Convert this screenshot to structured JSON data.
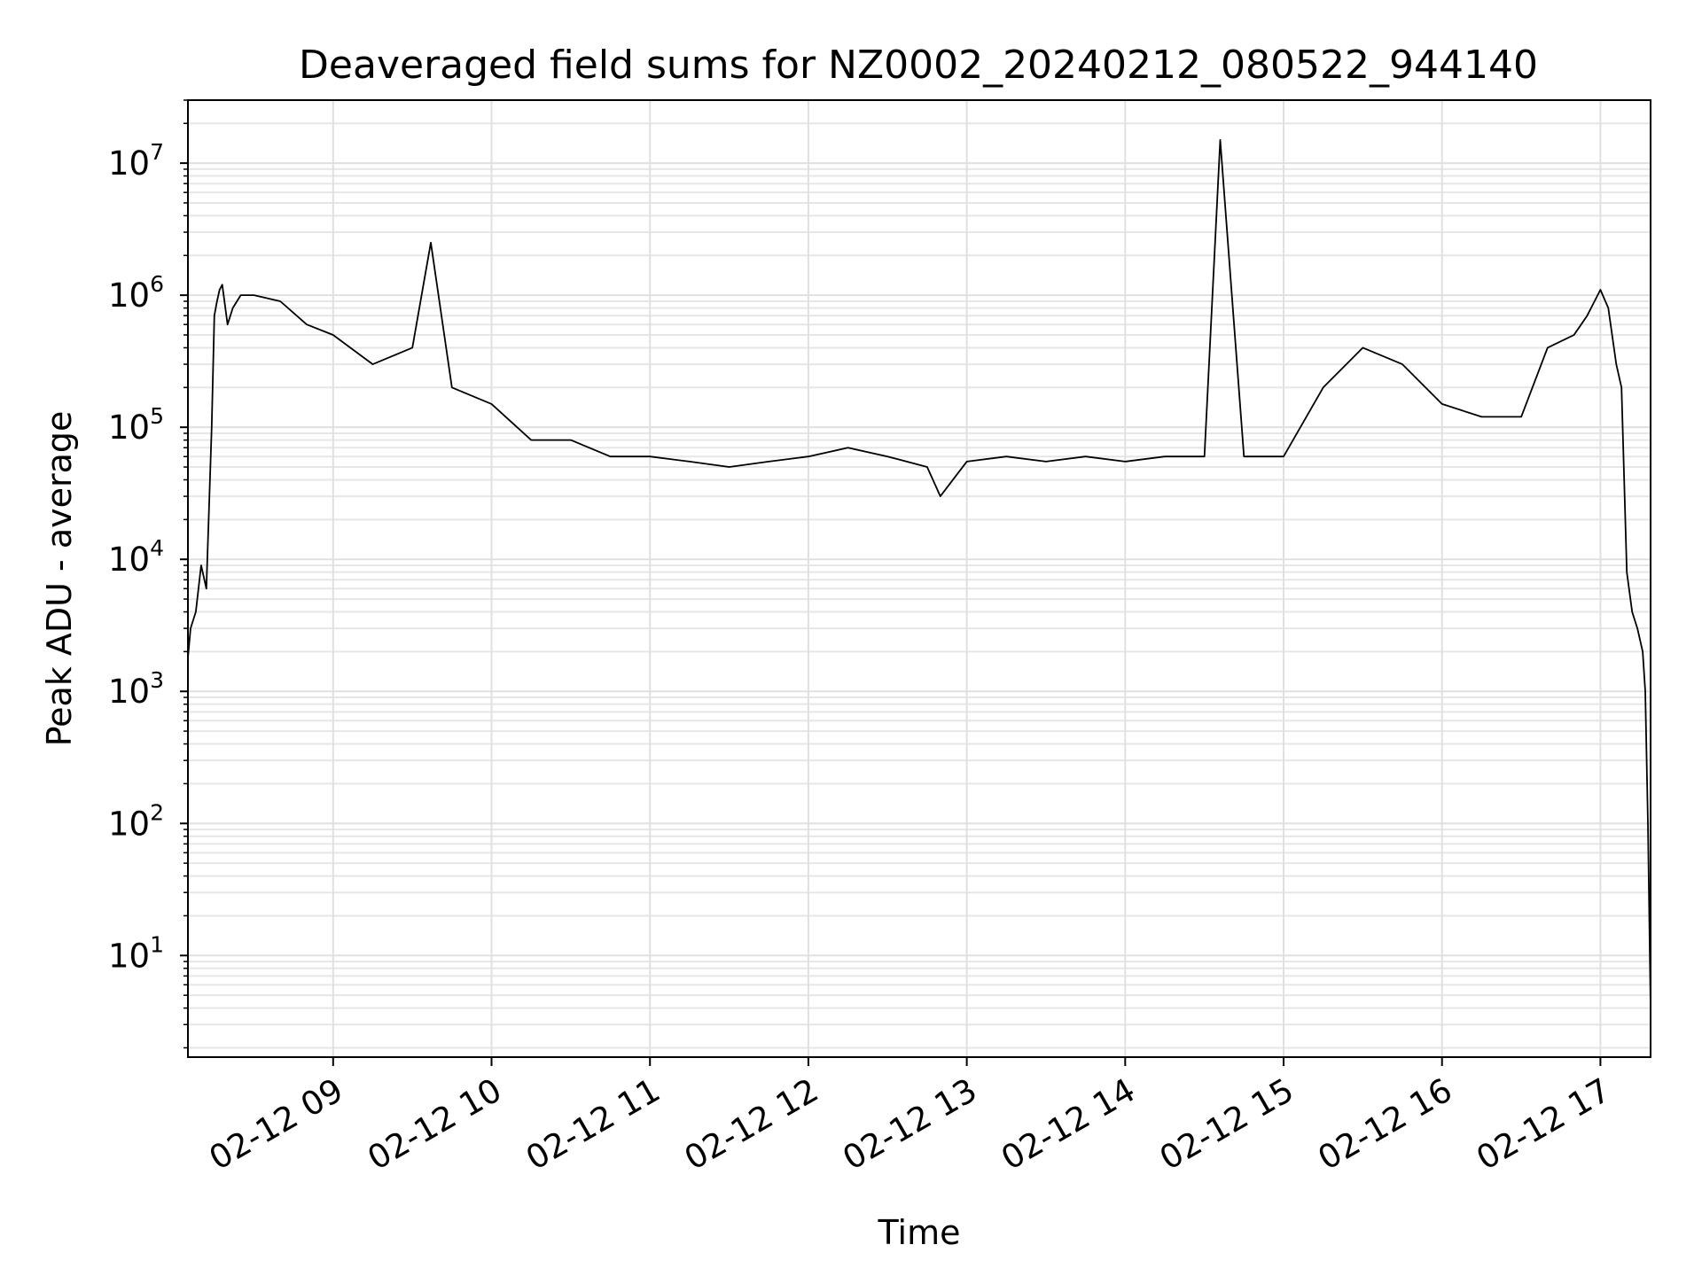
{
  "chart_data": {
    "type": "line",
    "title": "Deaveraged field sums for NZ0002_20240212_080522_944140",
    "xlabel": "Time",
    "ylabel": "Peak ADU - average",
    "yscale": "log",
    "ylim": [
      1.7,
      30000000
    ],
    "xlim": [
      "2024-02-12 08:05",
      "2024-02-12 17:19"
    ],
    "grid": true,
    "x_ticks": [
      "2024-02-12 09:00",
      "2024-02-12 10:00",
      "2024-02-12 11:00",
      "2024-02-12 12:00",
      "2024-02-12 13:00",
      "2024-02-12 14:00",
      "2024-02-12 15:00",
      "2024-02-12 16:00",
      "2024-02-12 17:00"
    ],
    "x_tick_labels": [
      "02-12 09",
      "02-12 10",
      "02-12 11",
      "02-12 12",
      "02-12 13",
      "02-12 14",
      "02-12 15",
      "02-12 16",
      "02-12 17"
    ],
    "y_tick_labels": [
      {
        "base": "10",
        "exp": "1",
        "value": 10
      },
      {
        "base": "10",
        "exp": "2",
        "value": 100
      },
      {
        "base": "10",
        "exp": "3",
        "value": 1000
      },
      {
        "base": "10",
        "exp": "4",
        "value": 10000
      },
      {
        "base": "10",
        "exp": "5",
        "value": 100000
      },
      {
        "base": "10",
        "exp": "6",
        "value": 1000000
      },
      {
        "base": "10",
        "exp": "7",
        "value": 10000000
      }
    ],
    "series": [
      {
        "color": "#000000",
        "x": [
          "2024-02-12 08:05",
          "2024-02-12 08:06",
          "2024-02-12 08:08",
          "2024-02-12 08:10",
          "2024-02-12 08:12",
          "2024-02-12 08:14",
          "2024-02-12 08:15",
          "2024-02-12 08:16",
          "2024-02-12 08:17",
          "2024-02-12 08:18",
          "2024-02-12 08:20",
          "2024-02-12 08:22",
          "2024-02-12 08:25",
          "2024-02-12 08:30",
          "2024-02-12 08:40",
          "2024-02-12 08:50",
          "2024-02-12 09:00",
          "2024-02-12 09:15",
          "2024-02-12 09:30",
          "2024-02-12 09:37",
          "2024-02-12 09:45",
          "2024-02-12 10:00",
          "2024-02-12 10:15",
          "2024-02-12 10:30",
          "2024-02-12 10:45",
          "2024-02-12 11:00",
          "2024-02-12 11:15",
          "2024-02-12 11:30",
          "2024-02-12 11:45",
          "2024-02-12 12:00",
          "2024-02-12 12:15",
          "2024-02-12 12:30",
          "2024-02-12 12:45",
          "2024-02-12 12:50",
          "2024-02-12 13:00",
          "2024-02-12 13:15",
          "2024-02-12 13:30",
          "2024-02-12 13:45",
          "2024-02-12 14:00",
          "2024-02-12 14:15",
          "2024-02-12 14:30",
          "2024-02-12 14:36",
          "2024-02-12 14:45",
          "2024-02-12 15:00",
          "2024-02-12 15:15",
          "2024-02-12 15:30",
          "2024-02-12 15:45",
          "2024-02-12 16:00",
          "2024-02-12 16:15",
          "2024-02-12 16:30",
          "2024-02-12 16:40",
          "2024-02-12 16:50",
          "2024-02-12 16:55",
          "2024-02-12 17:00",
          "2024-02-12 17:03",
          "2024-02-12 17:06",
          "2024-02-12 17:08",
          "2024-02-12 17:10",
          "2024-02-12 17:12",
          "2024-02-12 17:14",
          "2024-02-12 17:16",
          "2024-02-12 17:17",
          "2024-02-12 17:18",
          "2024-02-12 17:19"
        ],
        "y": [
          1800,
          3000,
          4000,
          9000,
          6000,
          100000,
          700000,
          900000,
          1100000,
          1200000,
          600000,
          800000,
          1000000,
          1000000,
          900000,
          600000,
          500000,
          300000,
          400000,
          2500000,
          200000,
          150000,
          80000,
          80000,
          60000,
          60000,
          55000,
          50000,
          55000,
          60000,
          70000,
          60000,
          50000,
          30000,
          55000,
          60000,
          55000,
          60000,
          55000,
          60000,
          60000,
          15000000,
          60000,
          60000,
          200000,
          400000,
          300000,
          150000,
          120000,
          120000,
          400000,
          500000,
          700000,
          1100000,
          800000,
          300000,
          200000,
          8000,
          4000,
          3000,
          2000,
          1000,
          100,
          4
        ]
      }
    ]
  }
}
